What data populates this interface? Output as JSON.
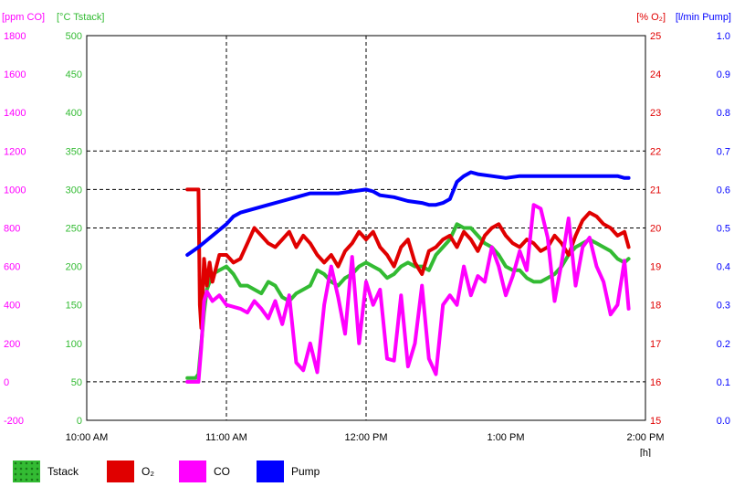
{
  "chart_data": {
    "type": "line",
    "axes": {
      "left_outer": {
        "header": "[ppm CO]",
        "color": "#ff00ff",
        "ylim": [
          -200,
          1800
        ],
        "ticks": [
          "-200",
          "0",
          "200",
          "400",
          "600",
          "800",
          "1000",
          "1200",
          "1400",
          "1600",
          "1800"
        ]
      },
      "left_inner": {
        "header": "[°C Tstack]",
        "color": "#33bb33",
        "ylim": [
          0,
          500
        ],
        "ticks": [
          "0",
          "50",
          "100",
          "150",
          "200",
          "250",
          "300",
          "350",
          "400",
          "450",
          "500"
        ]
      },
      "right_inner": {
        "header": "[% O₂]",
        "color": "#e00000",
        "ylim": [
          15,
          25
        ],
        "ticks": [
          "15",
          "16",
          "17",
          "18",
          "19",
          "20",
          "21",
          "22",
          "23",
          "24",
          "25"
        ]
      },
      "right_outer": {
        "header": "[l/min Pump]",
        "color": "#0000ff",
        "ylim": [
          0.0,
          1.0
        ],
        "ticks": [
          "0.0",
          "0.1",
          "0.2",
          "0.3",
          "0.4",
          "0.5",
          "0.6",
          "0.7",
          "0.8",
          "0.9",
          "1.0"
        ]
      },
      "x": {
        "unit_label": "[h]",
        "xlim": [
          10.0,
          14.0
        ],
        "ticks": [
          "10:00 AM",
          "11:00 AM",
          "12:00 PM",
          "1:00 PM",
          "2:00 PM"
        ],
        "tick_values": [
          10,
          11,
          12,
          13,
          14
        ]
      }
    },
    "grid": {
      "horizontal_at_tstack": [
        50,
        250,
        300,
        350
      ],
      "vertical_at_hours": [
        11,
        12
      ],
      "style": "dashed"
    },
    "series": [
      {
        "name": "Tstack",
        "axis": "left_inner",
        "color": "#33bb33",
        "x": [
          10.72,
          10.78,
          10.8,
          10.82,
          10.84,
          10.86,
          10.9,
          10.95,
          11.0,
          11.05,
          11.1,
          11.15,
          11.2,
          11.25,
          11.3,
          11.35,
          11.4,
          11.45,
          11.5,
          11.55,
          11.6,
          11.65,
          11.7,
          11.75,
          11.8,
          11.85,
          11.9,
          11.95,
          12.0,
          12.05,
          12.1,
          12.15,
          12.2,
          12.25,
          12.3,
          12.35,
          12.4,
          12.45,
          12.5,
          12.55,
          12.6,
          12.65,
          12.7,
          12.75,
          12.8,
          12.85,
          12.9,
          12.95,
          13.0,
          13.05,
          13.1,
          13.15,
          13.2,
          13.25,
          13.3,
          13.35,
          13.4,
          13.45,
          13.5,
          13.55,
          13.6,
          13.65,
          13.7,
          13.75,
          13.8,
          13.85,
          13.88
        ],
        "y": [
          55,
          55,
          60,
          100,
          140,
          170,
          190,
          195,
          200,
          190,
          175,
          175,
          170,
          165,
          180,
          175,
          160,
          155,
          165,
          170,
          175,
          195,
          190,
          180,
          175,
          185,
          190,
          200,
          205,
          200,
          195,
          185,
          190,
          200,
          205,
          200,
          200,
          195,
          215,
          225,
          235,
          255,
          250,
          250,
          240,
          230,
          225,
          215,
          200,
          195,
          195,
          185,
          180,
          180,
          185,
          190,
          200,
          215,
          225,
          230,
          235,
          230,
          225,
          220,
          210,
          205,
          210
        ]
      },
      {
        "name": "O₂",
        "axis": "right_inner",
        "color": "#e00000",
        "x": [
          10.72,
          10.78,
          10.8,
          10.81,
          10.82,
          10.84,
          10.86,
          10.88,
          10.9,
          10.95,
          11.0,
          11.05,
          11.1,
          11.15,
          11.2,
          11.25,
          11.3,
          11.35,
          11.4,
          11.45,
          11.5,
          11.55,
          11.6,
          11.65,
          11.7,
          11.75,
          11.8,
          11.85,
          11.9,
          11.95,
          12.0,
          12.05,
          12.1,
          12.15,
          12.2,
          12.25,
          12.3,
          12.35,
          12.4,
          12.45,
          12.5,
          12.55,
          12.6,
          12.65,
          12.7,
          12.75,
          12.8,
          12.85,
          12.9,
          12.95,
          13.0,
          13.05,
          13.1,
          13.15,
          13.2,
          13.25,
          13.3,
          13.35,
          13.4,
          13.45,
          13.5,
          13.55,
          13.6,
          13.65,
          13.7,
          13.75,
          13.8,
          13.85,
          13.88
        ],
        "y": [
          21.0,
          21.0,
          21.0,
          18.0,
          17.4,
          19.2,
          18.5,
          19.1,
          18.6,
          19.3,
          19.3,
          19.1,
          19.2,
          19.6,
          20.0,
          19.8,
          19.6,
          19.5,
          19.7,
          19.9,
          19.5,
          19.8,
          19.6,
          19.3,
          19.1,
          19.3,
          19.0,
          19.4,
          19.6,
          19.9,
          19.7,
          19.9,
          19.5,
          19.3,
          19.0,
          19.5,
          19.7,
          19.1,
          18.8,
          19.4,
          19.5,
          19.7,
          19.8,
          19.5,
          19.9,
          19.7,
          19.4,
          19.8,
          20.0,
          20.1,
          19.8,
          19.6,
          19.5,
          19.7,
          19.6,
          19.4,
          19.5,
          19.8,
          19.6,
          19.3,
          19.8,
          20.2,
          20.4,
          20.3,
          20.1,
          20.0,
          19.8,
          19.9,
          19.5
        ]
      },
      {
        "name": "CO",
        "axis": "left_outer",
        "color": "#ff00ff",
        "x": [
          10.72,
          10.8,
          10.82,
          10.84,
          10.86,
          10.9,
          10.95,
          11.0,
          11.05,
          11.1,
          11.15,
          11.2,
          11.25,
          11.3,
          11.35,
          11.4,
          11.45,
          11.5,
          11.55,
          11.6,
          11.65,
          11.7,
          11.75,
          11.8,
          11.85,
          11.9,
          11.95,
          12.0,
          12.05,
          12.1,
          12.15,
          12.2,
          12.25,
          12.3,
          12.35,
          12.4,
          12.45,
          12.5,
          12.55,
          12.6,
          12.65,
          12.7,
          12.75,
          12.8,
          12.85,
          12.9,
          12.95,
          13.0,
          13.05,
          13.1,
          13.15,
          13.2,
          13.25,
          13.3,
          13.35,
          13.4,
          13.45,
          13.5,
          13.55,
          13.6,
          13.65,
          13.7,
          13.75,
          13.8,
          13.85,
          13.88
        ],
        "y": [
          0,
          0,
          180,
          420,
          470,
          420,
          450,
          400,
          390,
          380,
          360,
          420,
          380,
          330,
          420,
          300,
          450,
          100,
          60,
          200,
          50,
          400,
          600,
          440,
          250,
          650,
          200,
          520,
          400,
          480,
          120,
          110,
          450,
          80,
          200,
          500,
          120,
          40,
          400,
          450,
          400,
          600,
          450,
          550,
          520,
          700,
          600,
          450,
          550,
          680,
          580,
          920,
          900,
          750,
          420,
          620,
          850,
          500,
          700,
          750,
          600,
          520,
          350,
          400,
          630,
          380
        ]
      },
      {
        "name": "Pump",
        "axis": "right_outer",
        "color": "#0000ff",
        "x": [
          10.72,
          10.8,
          10.9,
          11.0,
          11.05,
          11.1,
          11.2,
          11.3,
          11.4,
          11.5,
          11.6,
          11.7,
          11.8,
          11.9,
          12.0,
          12.05,
          12.1,
          12.2,
          12.3,
          12.4,
          12.45,
          12.5,
          12.55,
          12.6,
          12.65,
          12.7,
          12.75,
          12.8,
          12.9,
          13.0,
          13.1,
          13.2,
          13.3,
          13.4,
          13.5,
          13.6,
          13.7,
          13.8,
          13.85,
          13.88
        ],
        "y": [
          0.43,
          0.45,
          0.48,
          0.51,
          0.53,
          0.54,
          0.55,
          0.56,
          0.57,
          0.58,
          0.59,
          0.59,
          0.59,
          0.595,
          0.6,
          0.595,
          0.585,
          0.58,
          0.57,
          0.565,
          0.56,
          0.56,
          0.565,
          0.575,
          0.62,
          0.635,
          0.645,
          0.64,
          0.635,
          0.63,
          0.635,
          0.635,
          0.635,
          0.635,
          0.635,
          0.635,
          0.635,
          0.635,
          0.63,
          0.63
        ]
      }
    ]
  },
  "legend": [
    {
      "label": "Tstack",
      "color": "#33bb33",
      "pattern": "dotted"
    },
    {
      "label": "O₂",
      "color": "#e00000",
      "pattern": "solid"
    },
    {
      "label": "CO",
      "color": "#ff00ff",
      "pattern": "solid"
    },
    {
      "label": "Pump",
      "color": "#0000ff",
      "pattern": "solid"
    }
  ]
}
